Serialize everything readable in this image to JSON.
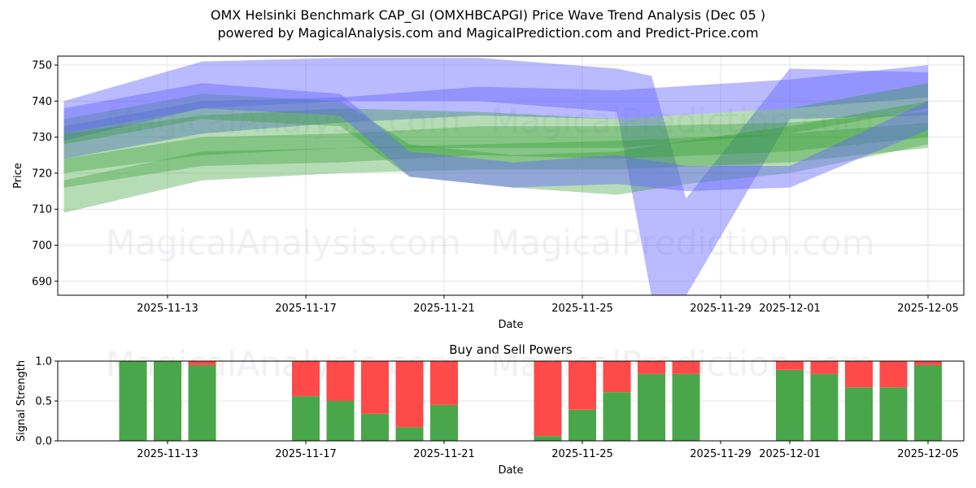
{
  "header": {
    "title": "OMX Helsinki Benchmark CAP_GI (OMXHBCAPGI) Price Wave Trend Analysis (Dec 05 )",
    "subtitle": "powered by MagicalAnalysis.com and MagicalPrediction.com and Predict-Price.com"
  },
  "watermarks": [
    "MagicalAnalysis.com",
    "MagicalPrediction.com"
  ],
  "colors": {
    "blue_band": "#6666ff",
    "green_band": "#2e9a2e",
    "buy": "#4aa64a",
    "sell": "#ff4a4a",
    "grid": "#dddddd"
  },
  "chart_data": [
    {
      "type": "area",
      "title": "Price Wave Trend Bands",
      "xlabel": "Date",
      "ylabel": "Price",
      "ylim": [
        686,
        752
      ],
      "yticks": [
        690,
        700,
        710,
        720,
        730,
        740,
        750
      ],
      "xticks": [
        "2025-11-13",
        "2025-11-17",
        "2025-11-21",
        "2025-11-25",
        "2025-11-29",
        "2025-12-01",
        "2025-12-05"
      ],
      "xrange": [
        "2025-11-09",
        "2025-12-06"
      ],
      "grid": true,
      "series": [
        {
          "name": "blue wave (wide)",
          "color": "blue",
          "x": [
            "2025-11-10",
            "2025-11-14",
            "2025-11-18",
            "2025-11-22",
            "2025-11-26",
            "2025-11-27",
            "2025-11-28",
            "2025-12-01",
            "2025-12-05"
          ],
          "upper": [
            740,
            751,
            752,
            752,
            749,
            747,
            713,
            749,
            748
          ],
          "lower": [
            729,
            738,
            740,
            740,
            737,
            686,
            686,
            735,
            736
          ]
        },
        {
          "name": "blue-green band",
          "color": "blue",
          "x": [
            "2025-11-10",
            "2025-11-14",
            "2025-11-18",
            "2025-11-22",
            "2025-11-26",
            "2025-12-01",
            "2025-12-05"
          ],
          "upper": [
            733,
            740,
            741,
            744,
            743,
            746,
            750
          ],
          "lower": [
            724,
            731,
            734,
            736,
            735,
            738,
            741
          ]
        },
        {
          "name": "green band 1",
          "color": "green",
          "x": [
            "2025-11-10",
            "2025-11-14",
            "2025-11-18",
            "2025-11-22",
            "2025-11-26",
            "2025-12-01",
            "2025-12-05"
          ],
          "upper": [
            731,
            736,
            738,
            737,
            735,
            738,
            745
          ],
          "lower": [
            720,
            725,
            727,
            727,
            727,
            731,
            738
          ]
        },
        {
          "name": "green band 2",
          "color": "green",
          "x": [
            "2025-11-10",
            "2025-11-14",
            "2025-11-18",
            "2025-11-22",
            "2025-11-26",
            "2025-12-01",
            "2025-12-05"
          ],
          "upper": [
            724,
            730,
            731,
            733,
            733,
            734,
            737
          ],
          "lower": [
            716,
            722,
            723,
            725,
            724,
            726,
            730
          ]
        },
        {
          "name": "green band 3 (light)",
          "color": "green",
          "x": [
            "2025-11-10",
            "2025-11-14",
            "2025-11-18",
            "2025-11-22",
            "2025-11-26",
            "2025-12-01",
            "2025-12-05"
          ],
          "upper": [
            718,
            726,
            727,
            728,
            729,
            731,
            734
          ],
          "lower": [
            709,
            718,
            720,
            721,
            721,
            723,
            727
          ]
        },
        {
          "name": "green wave dip",
          "color": "green",
          "x": [
            "2025-11-10",
            "2025-11-14",
            "2025-11-18",
            "2025-11-20",
            "2025-11-23",
            "2025-11-26",
            "2025-11-28",
            "2025-12-01",
            "2025-12-05"
          ],
          "upper": [
            735,
            742,
            740,
            728,
            725,
            726,
            729,
            733,
            740
          ],
          "lower": [
            728,
            735,
            733,
            719,
            716,
            714,
            717,
            720,
            728
          ]
        },
        {
          "name": "blue wave dip",
          "color": "blue",
          "x": [
            "2025-11-10",
            "2025-11-14",
            "2025-11-18",
            "2025-11-20",
            "2025-11-23",
            "2025-11-26",
            "2025-11-28",
            "2025-12-01",
            "2025-12-05"
          ],
          "upper": [
            738,
            745,
            742,
            726,
            723,
            725,
            722,
            722,
            740
          ],
          "lower": [
            731,
            738,
            736,
            719,
            716,
            717,
            715,
            716,
            732
          ]
        }
      ]
    },
    {
      "type": "bar",
      "title": "Buy and Sell Powers",
      "xlabel": "Date",
      "ylabel": "Signal Strength",
      "ylim": [
        0,
        1
      ],
      "yticks": [
        "0.0",
        "0.5",
        "1.0"
      ],
      "xticks": [
        "2025-11-13",
        "2025-11-17",
        "2025-11-21",
        "2025-11-25",
        "2025-11-29",
        "2025-12-01",
        "2025-12-05"
      ],
      "stacked": true,
      "categories": [
        "2025-11-12",
        "2025-11-13",
        "2025-11-14",
        "2025-11-17",
        "2025-11-18",
        "2025-11-19",
        "2025-11-20",
        "2025-11-21",
        "2025-11-24",
        "2025-11-25",
        "2025-11-26",
        "2025-11-27",
        "2025-11-28",
        "2025-12-01",
        "2025-12-02",
        "2025-12-03",
        "2025-12-04",
        "2025-12-05"
      ],
      "series": [
        {
          "name": "Buy",
          "color": "green",
          "values": [
            1.0,
            1.0,
            0.95,
            0.56,
            0.5,
            0.34,
            0.17,
            0.45,
            0.06,
            0.39,
            0.61,
            0.84,
            0.84,
            0.89,
            0.84,
            0.67,
            0.67,
            0.95
          ]
        },
        {
          "name": "Sell",
          "color": "red",
          "values": [
            0.0,
            0.0,
            0.05,
            0.44,
            0.5,
            0.66,
            0.83,
            0.55,
            0.94,
            0.61,
            0.39,
            0.16,
            0.16,
            0.11,
            0.16,
            0.33,
            0.33,
            0.05
          ]
        }
      ]
    }
  ]
}
